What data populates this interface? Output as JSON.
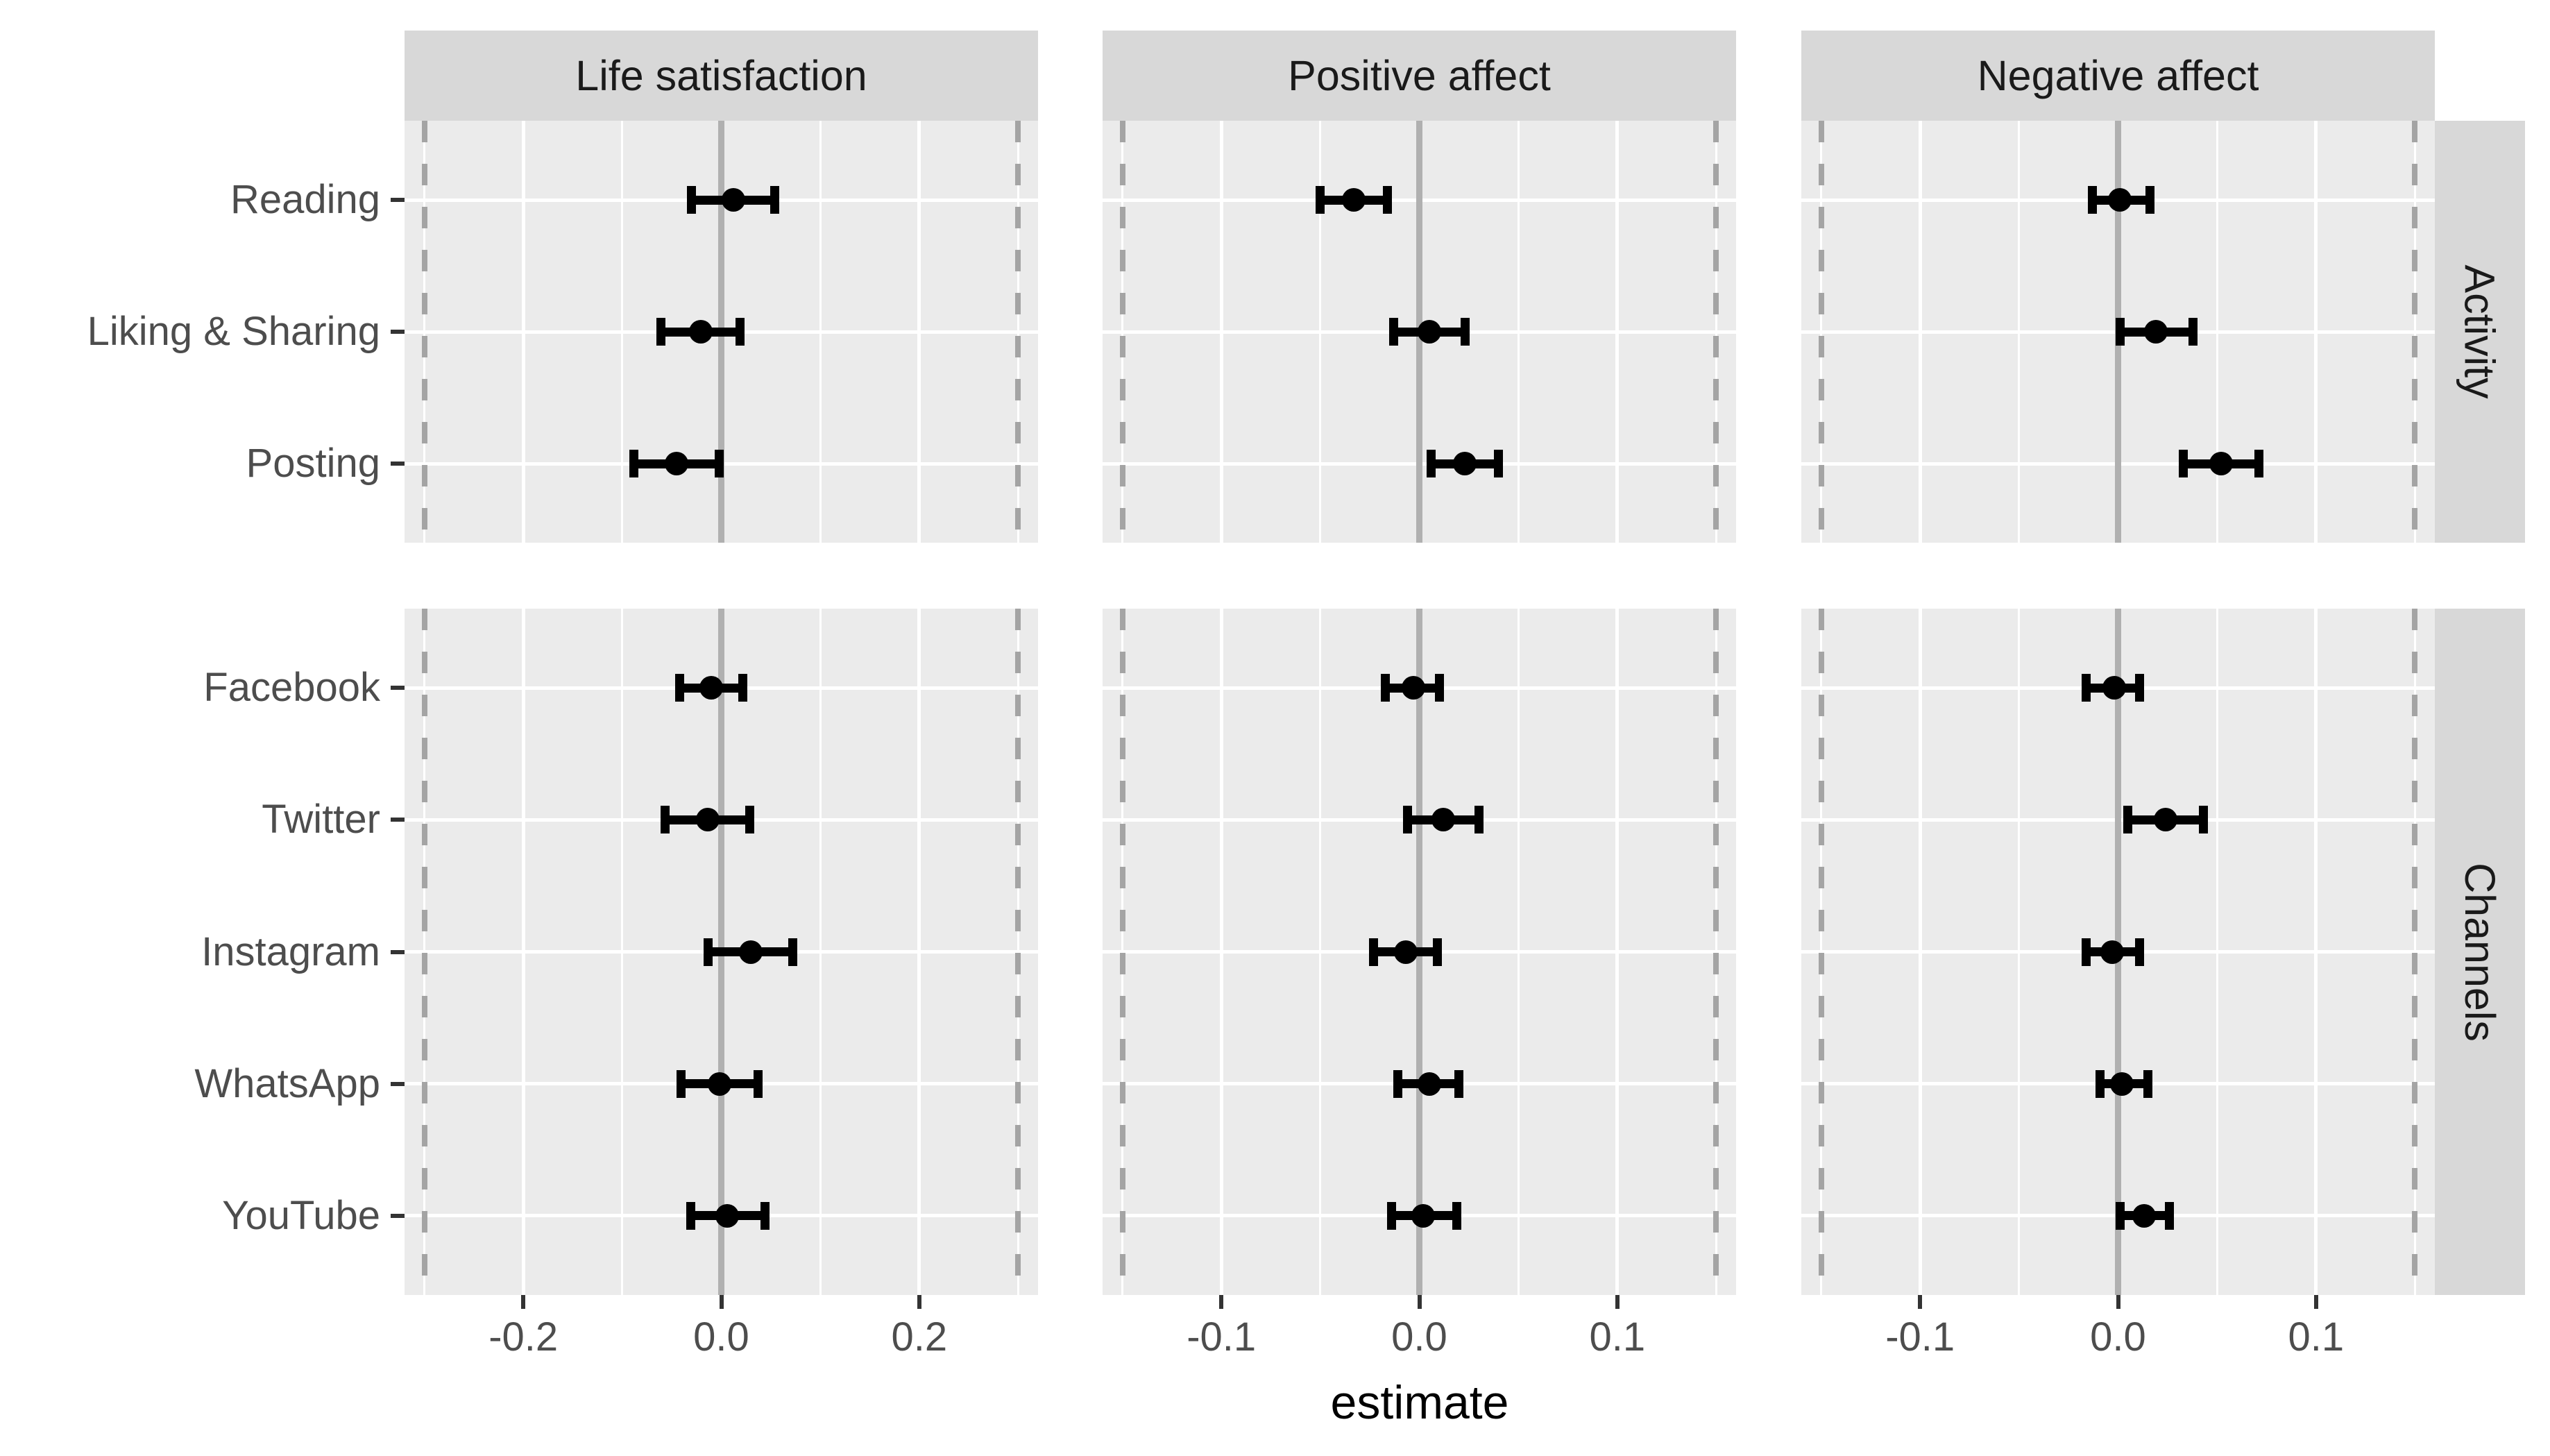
{
  "chart_data": {
    "type": "scatter",
    "subtype": "forest-pointrange",
    "xlabel": "estimate",
    "grid": true,
    "point_color": "#000000",
    "zero_line_color": "#b0b0b0",
    "ref_line_color": "#a4a4a4",
    "panel_bg": "#ebebeb",
    "strip_bg": "#d8d8d8",
    "row_facets": [
      {
        "facet": "Activity",
        "categories": [
          "Reading",
          "Liking & Sharing",
          "Posting"
        ]
      },
      {
        "facet": "Channels",
        "categories": [
          "Facebook",
          "Twitter",
          "Instagram",
          "WhatsApp",
          "YouTube"
        ]
      }
    ],
    "columns": [
      {
        "facet": "Life satisfaction",
        "xlim": [
          -0.32,
          0.32
        ],
        "xticks": [
          -0.2,
          0.0,
          0.2
        ],
        "xtick_labels": [
          "-0.2",
          "0.0",
          "0.2"
        ],
        "grid_major": [
          -0.2,
          0.0,
          0.2
        ],
        "grid_minor": [
          -0.3,
          -0.1,
          0.1,
          0.3
        ],
        "dashed_refs": [
          -0.3,
          0.3
        ],
        "zero_line": 0.0,
        "groups": [
          [
            {
              "label": "Reading",
              "estimate": 0.012,
              "ci_low": -0.03,
              "ci_high": 0.054
            },
            {
              "label": "Liking & Sharing",
              "estimate": -0.021,
              "ci_low": -0.061,
              "ci_high": 0.019
            },
            {
              "label": "Posting",
              "estimate": -0.045,
              "ci_low": -0.088,
              "ci_high": -0.002
            }
          ],
          [
            {
              "label": "Facebook",
              "estimate": -0.01,
              "ci_low": -0.042,
              "ci_high": 0.022
            },
            {
              "label": "Twitter",
              "estimate": -0.014,
              "ci_low": -0.057,
              "ci_high": 0.029
            },
            {
              "label": "Instagram",
              "estimate": 0.03,
              "ci_low": -0.013,
              "ci_high": 0.072
            },
            {
              "label": "WhatsApp",
              "estimate": -0.002,
              "ci_low": -0.041,
              "ci_high": 0.037
            },
            {
              "label": "YouTube",
              "estimate": 0.006,
              "ci_low": -0.031,
              "ci_high": 0.044
            }
          ]
        ]
      },
      {
        "facet": "Positive affect",
        "xlim": [
          -0.16,
          0.16
        ],
        "xticks": [
          -0.1,
          0.0,
          0.1
        ],
        "xtick_labels": [
          "-0.1",
          "0.0",
          "0.1"
        ],
        "grid_major": [
          -0.1,
          0.0,
          0.1
        ],
        "grid_minor": [
          -0.15,
          -0.05,
          0.05,
          0.15
        ],
        "dashed_refs": [
          -0.15,
          0.15
        ],
        "zero_line": 0.0,
        "groups": [
          [
            {
              "label": "Reading",
              "estimate": -0.033,
              "ci_low": -0.05,
              "ci_high": -0.016
            },
            {
              "label": "Liking & Sharing",
              "estimate": 0.005,
              "ci_low": -0.013,
              "ci_high": 0.023
            },
            {
              "label": "Posting",
              "estimate": 0.023,
              "ci_low": 0.006,
              "ci_high": 0.04
            }
          ],
          [
            {
              "label": "Facebook",
              "estimate": -0.003,
              "ci_low": -0.017,
              "ci_high": 0.01
            },
            {
              "label": "Twitter",
              "estimate": 0.012,
              "ci_low": -0.006,
              "ci_high": 0.03
            },
            {
              "label": "Instagram",
              "estimate": -0.007,
              "ci_low": -0.023,
              "ci_high": 0.009
            },
            {
              "label": "WhatsApp",
              "estimate": 0.005,
              "ci_low": -0.011,
              "ci_high": 0.02
            },
            {
              "label": "YouTube",
              "estimate": 0.002,
              "ci_low": -0.014,
              "ci_high": 0.019
            }
          ]
        ]
      },
      {
        "facet": "Negative affect",
        "xlim": [
          -0.16,
          0.16
        ],
        "xticks": [
          -0.1,
          0.0,
          0.1
        ],
        "xtick_labels": [
          "-0.1",
          "0.0",
          "0.1"
        ],
        "grid_major": [
          -0.1,
          0.0,
          0.1
        ],
        "grid_minor": [
          -0.15,
          -0.05,
          0.05,
          0.15
        ],
        "dashed_refs": [
          -0.15,
          0.15
        ],
        "zero_line": 0.0,
        "groups": [
          [
            {
              "label": "Reading",
              "estimate": 0.001,
              "ci_low": -0.013,
              "ci_high": 0.016
            },
            {
              "label": "Liking & Sharing",
              "estimate": 0.019,
              "ci_low": 0.001,
              "ci_high": 0.038
            },
            {
              "label": "Posting",
              "estimate": 0.052,
              "ci_low": 0.033,
              "ci_high": 0.071
            }
          ],
          [
            {
              "label": "Facebook",
              "estimate": -0.002,
              "ci_low": -0.016,
              "ci_high": 0.011
            },
            {
              "label": "Twitter",
              "estimate": 0.024,
              "ci_low": 0.005,
              "ci_high": 0.043
            },
            {
              "label": "Instagram",
              "estimate": -0.003,
              "ci_low": -0.016,
              "ci_high": 0.011
            },
            {
              "label": "WhatsApp",
              "estimate": 0.002,
              "ci_low": -0.009,
              "ci_high": 0.015
            },
            {
              "label": "YouTube",
              "estimate": 0.013,
              "ci_low": 0.001,
              "ci_high": 0.026
            }
          ]
        ]
      }
    ]
  }
}
